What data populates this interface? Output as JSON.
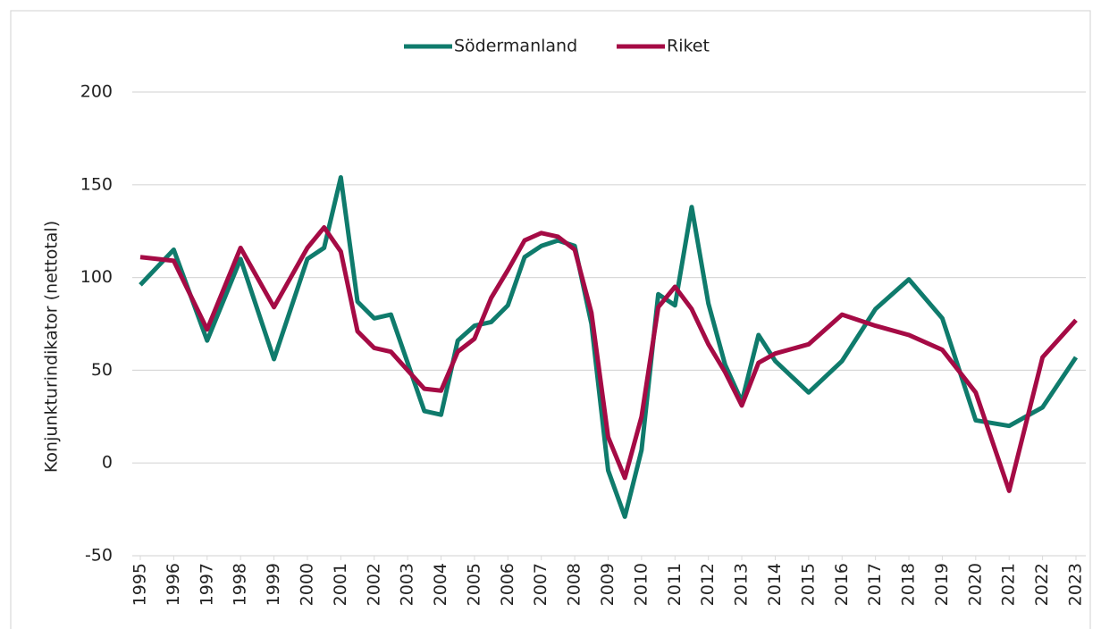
{
  "chart_data": {
    "type": "line",
    "y_label": "Konjunkturindikator (nettotal)",
    "xlim": [
      1995,
      2023
    ],
    "xticks": [
      1995,
      1996,
      1997,
      1998,
      1999,
      2000,
      2001,
      2002,
      2003,
      2004,
      2005,
      2006,
      2007,
      2008,
      2009,
      2010,
      2011,
      2012,
      2013,
      2014,
      2015,
      2016,
      2017,
      2018,
      2019,
      2020,
      2021,
      2022,
      2023
    ],
    "ylim": [
      -50,
      200
    ],
    "yticks": [
      -50,
      0,
      50,
      100,
      150,
      200
    ],
    "grid": true,
    "legend": "top",
    "x": [
      1995,
      1996,
      1997,
      1998,
      1999,
      2000,
      2000.5,
      2001,
      2001.5,
      2002,
      2002.5,
      2003.5,
      2004,
      2004.5,
      2005,
      2005.5,
      2006,
      2006.5,
      2007,
      2007.5,
      2008,
      2008.5,
      2009,
      2009.5,
      2010,
      2010.5,
      2011,
      2011.5,
      2012,
      2012.5,
      2013,
      2013.5,
      2014,
      2015,
      2016,
      2017,
      2018,
      2019,
      2020,
      2021,
      2022,
      2023
    ],
    "series": [
      {
        "name": "Södermanland",
        "color": "#0f7b6c",
        "values": [
          96,
          115,
          66,
          110,
          56,
          110,
          116,
          154,
          87,
          78,
          80,
          28,
          26,
          66,
          74,
          76,
          85,
          111,
          117,
          120,
          117,
          75,
          -4,
          -29,
          7,
          91,
          85,
          138,
          86,
          53,
          33,
          69,
          55,
          38,
          55,
          83,
          99,
          78,
          23,
          20,
          30,
          57
        ]
      },
      {
        "name": "Riket",
        "color": "#a50b45",
        "values": [
          111,
          109,
          72,
          116,
          84,
          116,
          127,
          114,
          71,
          62,
          60,
          40,
          39,
          60,
          67,
          89,
          104,
          120,
          124,
          122,
          115,
          81,
          14,
          -8,
          25,
          84,
          95,
          83,
          64,
          49,
          31,
          54,
          59,
          64,
          80,
          74,
          69,
          61,
          38,
          -15,
          57,
          77
        ]
      }
    ]
  }
}
